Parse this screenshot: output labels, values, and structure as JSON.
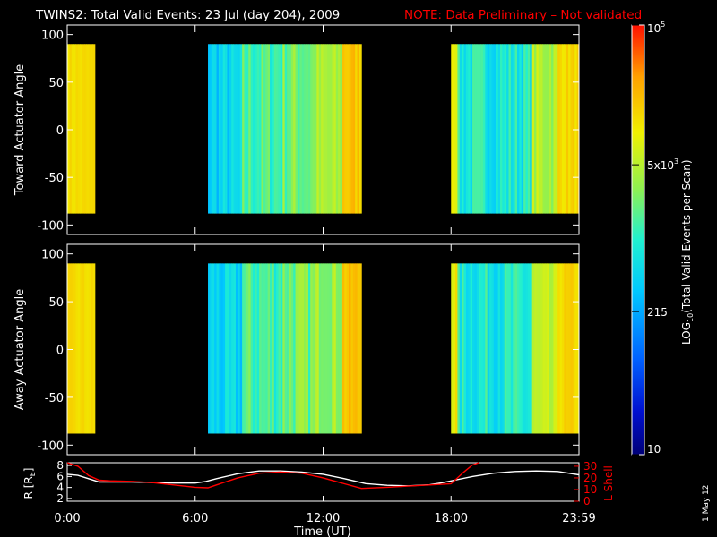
{
  "header": {
    "title": "TWINS2: Total Valid Events: 23 Jul (day 204), 2009",
    "note": "NOTE: Data Preliminary – Not validated"
  },
  "stamp": "1 May 12",
  "colors": {
    "background": "#000000",
    "text": "#ffffff",
    "note": "#ff0000",
    "r_line": "#ffffff",
    "lshell_line": "#ff0000"
  },
  "chart_data": [
    {
      "type": "heatmap",
      "name": "toward",
      "ylabel": "Toward Actuator Angle",
      "xlim_hours": [
        0,
        24
      ],
      "ylim": [
        -110,
        110
      ],
      "yticks": [
        100,
        50,
        0,
        -50,
        -100
      ],
      "angle_range": [
        -88,
        90
      ],
      "data_intervals_hours": [
        [
          0.0,
          1.3
        ],
        [
          6.6,
          13.8
        ],
        [
          18.0,
          24.0
        ]
      ],
      "color_scale": "log10",
      "value_range": [
        10,
        100000
      ]
    },
    {
      "type": "heatmap",
      "name": "away",
      "ylabel": "Away Actuator Angle",
      "xlim_hours": [
        0,
        24
      ],
      "ylim": [
        -110,
        110
      ],
      "yticks": [
        100,
        50,
        0,
        -50,
        -100
      ],
      "angle_range": [
        -88,
        90
      ],
      "data_intervals_hours": [
        [
          0.0,
          1.3
        ],
        [
          6.6,
          13.8
        ],
        [
          18.0,
          24.0
        ]
      ],
      "color_scale": "log10",
      "value_range": [
        10,
        100000
      ]
    },
    {
      "type": "line",
      "name": "orbit",
      "xlabel": "Time (UT)",
      "ylabel_left": "R [R",
      "ylabel_left_sub": "E",
      "ylabel_left_close": "]",
      "ylabel_right": "L Shell",
      "ylim_left": [
        1.5,
        8.5
      ],
      "ylim_right": [
        0,
        33
      ],
      "yticks_left": [
        "8",
        "6",
        "4",
        "2"
      ],
      "yticks_right": [
        "30",
        "20",
        "10",
        "0"
      ],
      "xticks": [
        "0:00",
        "6:00",
        "12:00",
        "18:00",
        "23:59"
      ],
      "series": [
        {
          "name": "R",
          "axis": "left",
          "x": [
            0,
            0.5,
            1,
            1.5,
            2,
            3,
            4,
            5,
            6,
            6.5,
            7,
            8,
            9,
            10,
            11,
            12,
            13,
            14,
            15,
            16,
            17,
            17.5,
            18,
            19,
            20,
            21,
            22,
            23,
            24
          ],
          "values": [
            6.4,
            6.2,
            5.6,
            5.0,
            5.0,
            5.0,
            4.9,
            4.8,
            4.8,
            5.1,
            5.6,
            6.5,
            7.0,
            7.0,
            6.8,
            6.4,
            5.6,
            4.7,
            4.4,
            4.3,
            4.5,
            4.8,
            5.2,
            6.0,
            6.6,
            6.9,
            7.0,
            6.9,
            6.3
          ]
        },
        {
          "name": "L Shell",
          "axis": "right",
          "x": [
            0,
            0.5,
            1,
            1.5,
            2,
            3,
            4,
            5,
            6,
            6.6,
            7,
            8,
            9,
            10,
            11,
            12,
            13,
            13.8,
            15,
            16,
            17,
            18,
            18.6,
            19,
            19.3
          ],
          "values": [
            33,
            30,
            22,
            18,
            17.5,
            17,
            16,
            14,
            12,
            11.5,
            14,
            20,
            24,
            25,
            24,
            20,
            15,
            11,
            12,
            13,
            14,
            15,
            25,
            31,
            33
          ]
        }
      ]
    }
  ],
  "colorbar": {
    "label": "LOG",
    "label_sub": "10",
    "label_rest": "(Total Valid Events per Scan)",
    "ticks": [
      {
        "value": 100000,
        "base": "10",
        "exp": "5",
        "mult": ""
      },
      {
        "value": 5000,
        "base": "10",
        "exp": "3",
        "mult": "5x"
      },
      {
        "value": 215,
        "base": "215",
        "exp": "",
        "mult": ""
      },
      {
        "value": 10,
        "base": "10",
        "exp": "",
        "mult": ""
      }
    ]
  }
}
